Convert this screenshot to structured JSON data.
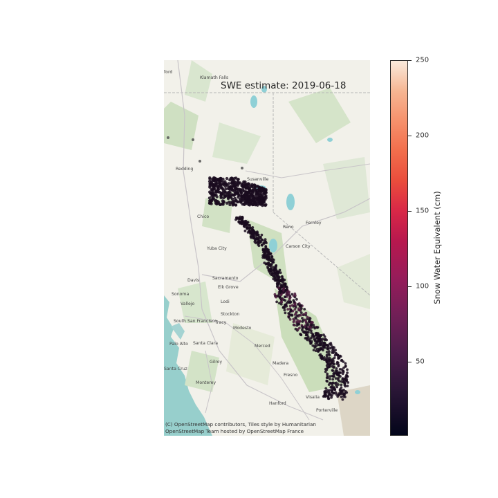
{
  "map": {
    "title": "SWE estimate: 2019-06-18",
    "attribution_line1": "(C) OpenStreetMap contributors, Tiles style by Humanitarian",
    "attribution_line2": "OpenStreetMap Team hosted by OpenStreetMap France",
    "places": [
      "Klamath Falls",
      "Redding",
      "Susanville",
      "Chico",
      "Reno",
      "Fernley",
      "Carson City",
      "Yuba City",
      "Davis",
      "Sacramento",
      "Elk Grove",
      "Sonoma",
      "Vallejo",
      "Lodi",
      "Stockton",
      "South San Francisco",
      "Tracy",
      "Modesto",
      "Palo Alto",
      "Santa Clara",
      "Merced",
      "Gilroy",
      "Madera",
      "Santa Cruz",
      "Fresno",
      "Monterey",
      "Visalia",
      "Hanford",
      "Porterville",
      "ford"
    ]
  },
  "colorbar": {
    "label": "Snow Water Equivalent (cm)",
    "ticks": [
      "250",
      "200",
      "150",
      "100",
      "50"
    ],
    "range": [
      0,
      250
    ],
    "colormap": "rocket"
  },
  "colors": {
    "point_dark": "#1a0c1e",
    "point_purple": "#4a1a3c"
  }
}
